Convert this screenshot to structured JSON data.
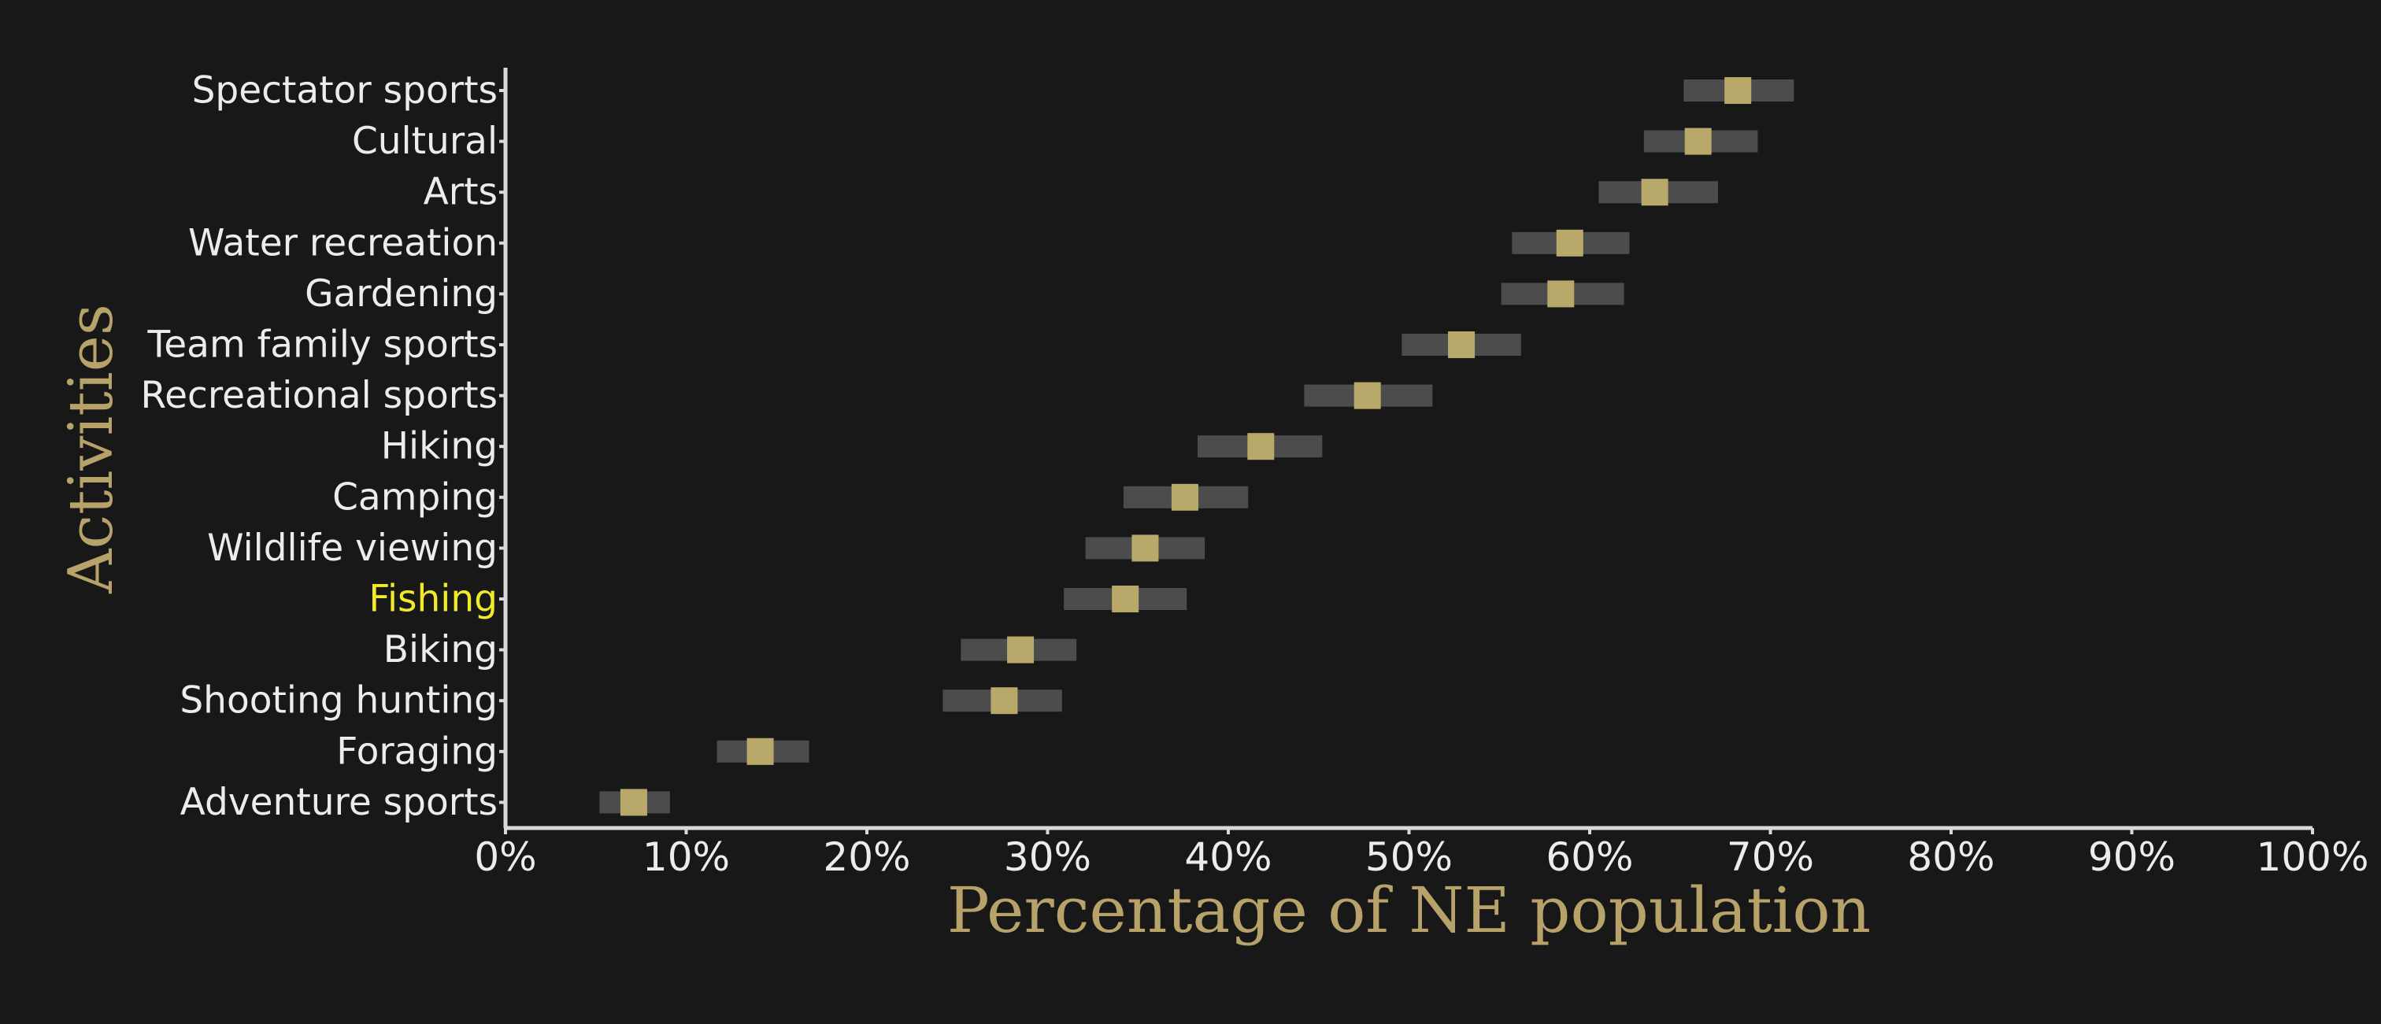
{
  "colors": {
    "background": "#181818",
    "axis": "#d9d9d9",
    "tick_label": "#ececec",
    "axis_title": "#b7a36a",
    "highlight_label": "#f1ea2b",
    "interval": "#4c4c4c",
    "point": "#b8a96b"
  },
  "chart_data": {
    "type": "interval-dot",
    "xlabel": "Percentage of NE population",
    "ylabel": "Activities",
    "xlim": [
      0,
      100
    ],
    "x_ticks": [
      "0%",
      "10%",
      "20%",
      "30%",
      "40%",
      "50%",
      "60%",
      "70%",
      "80%",
      "90%",
      "100%"
    ],
    "highlight": "Fishing",
    "grid": false,
    "categories": [
      "Spectator sports",
      "Cultural",
      "Arts",
      "Water recreation",
      "Gardening",
      "Team family sports",
      "Recreational sports",
      "Hiking",
      "Camping",
      "Wildlife viewing",
      "Fishing",
      "Biking",
      "Shooting hunting",
      "Foraging",
      "Adventure sports"
    ],
    "values": [
      68.2,
      66.0,
      63.6,
      58.9,
      58.4,
      52.9,
      47.7,
      41.8,
      37.6,
      35.4,
      34.3,
      28.5,
      27.6,
      14.1,
      7.1
    ],
    "lower": [
      65.2,
      63.0,
      60.5,
      55.7,
      55.1,
      49.6,
      44.2,
      38.3,
      34.2,
      32.1,
      30.9,
      25.2,
      24.2,
      11.7,
      5.2
    ],
    "upper": [
      71.3,
      69.3,
      67.1,
      62.2,
      61.9,
      56.2,
      51.3,
      45.2,
      41.1,
      38.7,
      37.7,
      31.6,
      30.8,
      16.8,
      9.1
    ]
  }
}
